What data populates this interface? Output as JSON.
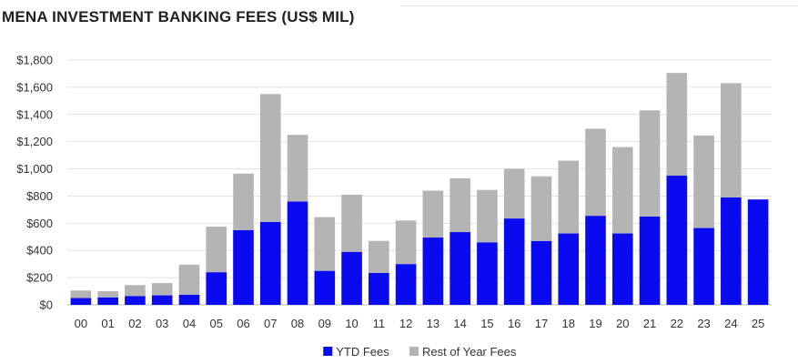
{
  "chart_data": {
    "type": "bar",
    "stacked": true,
    "title": "MENA INVESTMENT BANKING FEES (US$ MIL)",
    "xlabel": "",
    "ylabel": "",
    "ylim": [
      0,
      1800
    ],
    "yticks": [
      0,
      200,
      400,
      600,
      800,
      1000,
      1200,
      1400,
      1600,
      1800
    ],
    "ytick_labels": [
      "$0",
      "$200",
      "$400",
      "$600",
      "$800",
      "$1,000",
      "$1,200",
      "$1,400",
      "$1,600",
      "$1,800"
    ],
    "grid": true,
    "legend_position": "bottom",
    "categories": [
      "00",
      "01",
      "02",
      "03",
      "04",
      "05",
      "06",
      "07",
      "08",
      "09",
      "10",
      "11",
      "12",
      "13",
      "14",
      "15",
      "16",
      "17",
      "18",
      "19",
      "20",
      "21",
      "22",
      "23",
      "24",
      "25"
    ],
    "series": [
      {
        "name": "YTD Fees",
        "color": "#0a0af0",
        "values": [
          50,
          55,
          65,
          70,
          75,
          240,
          550,
          610,
          760,
          250,
          390,
          235,
          300,
          495,
          535,
          460,
          635,
          470,
          525,
          655,
          525,
          650,
          950,
          565,
          790,
          775
        ]
      },
      {
        "name": "Rest of Year Fees",
        "color": "#b4b4b4",
        "values": [
          55,
          45,
          80,
          90,
          220,
          335,
          415,
          940,
          490,
          395,
          420,
          235,
          320,
          345,
          395,
          385,
          365,
          475,
          535,
          640,
          635,
          780,
          755,
          680,
          840,
          0
        ]
      }
    ]
  }
}
